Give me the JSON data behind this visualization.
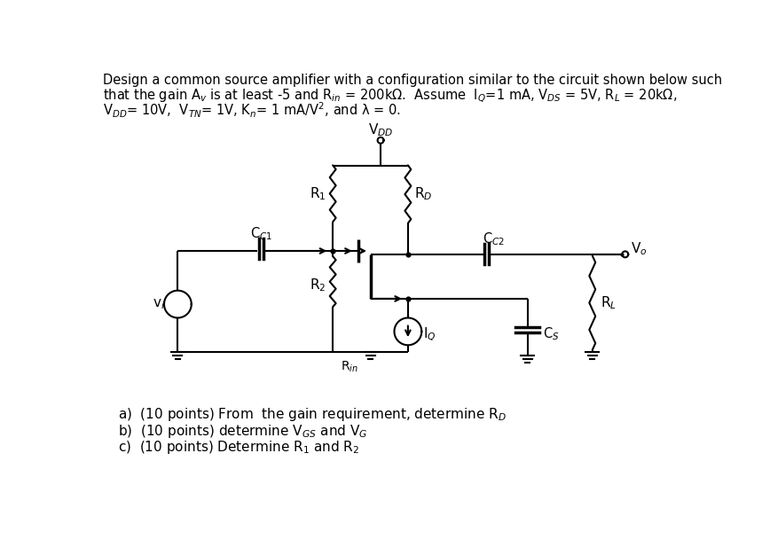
{
  "bg_color": "#ffffff",
  "header1": "Design a common source amplifier with a configuration similar to the circuit shown below such",
  "header2": "that the gain A$_v$ is at least -5 and R$_{in}$ = 200kΩ.  Assume  I$_Q$=1 mA, V$_{DS}$ = 5V, R$_L$ = 20kΩ,",
  "header3": "V$_{DD}$= 10V,  V$_{TN}$= 1V, K$_n$= 1 mA/V$^2$, and λ = 0.",
  "q1": "a)  (10 points) From  the gain requirement, determine R$_D$",
  "q2": "b)  (10 points) determine V$_{GS}$ and V$_G$",
  "q3": "c)  (10 points) Determine R$_1$ and R$_2$"
}
